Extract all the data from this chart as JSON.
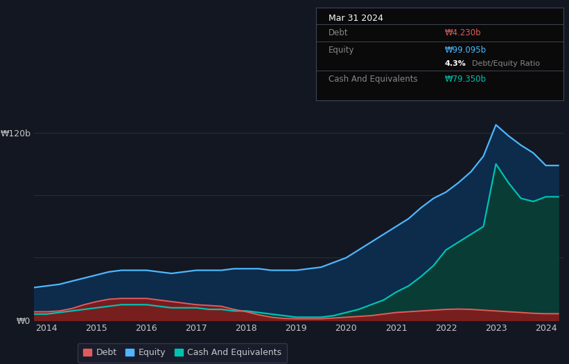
{
  "background_color": "#131722",
  "plot_bg_color": "#131722",
  "grid_color": "#2a2e39",
  "title_box": {
    "date": "Mar 31 2024",
    "debt_label": "Debt",
    "debt_value": "₩4.230b",
    "debt_color": "#e05c5c",
    "equity_label": "Equity",
    "equity_value": "₩99.095b",
    "equity_color": "#4db8ff",
    "ratio_value": "4.3%",
    "ratio_label": " Debt/Equity Ratio",
    "ratio_color": "#cccccc",
    "cash_label": "Cash And Equivalents",
    "cash_value": "₩79.350b",
    "cash_color": "#00c2b2"
  },
  "ylim": [
    0,
    135
  ],
  "xlabel_years": [
    "2014",
    "2015",
    "2016",
    "2017",
    "2018",
    "2019",
    "2020",
    "2021",
    "2022",
    "2023",
    "2024"
  ],
  "legend": [
    {
      "label": "Debt",
      "color": "#e05c5c"
    },
    {
      "label": "Equity",
      "color": "#4db8ff"
    },
    {
      "label": "Cash And Equivalents",
      "color": "#00c2b2"
    }
  ],
  "years": [
    2013.75,
    2014.0,
    2014.25,
    2014.5,
    2014.75,
    2015.0,
    2015.25,
    2015.5,
    2015.75,
    2016.0,
    2016.25,
    2016.5,
    2016.75,
    2017.0,
    2017.25,
    2017.5,
    2017.75,
    2018.0,
    2018.25,
    2018.5,
    2018.75,
    2019.0,
    2019.25,
    2019.5,
    2019.75,
    2020.0,
    2020.25,
    2020.5,
    2020.75,
    2021.0,
    2021.25,
    2021.5,
    2021.75,
    2022.0,
    2022.25,
    2022.5,
    2022.75,
    2023.0,
    2023.25,
    2023.5,
    2023.75,
    2024.0,
    2024.25
  ],
  "debt": [
    5.5,
    5.5,
    6.0,
    7.5,
    10.0,
    12.0,
    13.5,
    14.0,
    14.0,
    14.0,
    13.0,
    12.0,
    11.0,
    10.0,
    9.5,
    9.0,
    7.0,
    5.5,
    3.5,
    2.0,
    1.2,
    1.0,
    1.0,
    1.0,
    1.5,
    2.0,
    2.5,
    3.0,
    4.0,
    5.0,
    5.5,
    6.0,
    6.5,
    7.0,
    7.2,
    7.0,
    6.5,
    6.0,
    5.5,
    5.0,
    4.5,
    4.23,
    4.23
  ],
  "equity": [
    21,
    22,
    23,
    25,
    27,
    29,
    31,
    32,
    32,
    32,
    31,
    30,
    31,
    32,
    32,
    32,
    33,
    33,
    33,
    32,
    32,
    32,
    33,
    34,
    37,
    40,
    45,
    50,
    55,
    60,
    65,
    72,
    78,
    82,
    88,
    95,
    105,
    125,
    118,
    112,
    107,
    99,
    99
  ],
  "cash": [
    4,
    4,
    5,
    6,
    7,
    8,
    9,
    10,
    10,
    10,
    9,
    8,
    8,
    8,
    7,
    7,
    6,
    6,
    5,
    4,
    3,
    2,
    2,
    2,
    3,
    5,
    7,
    10,
    13,
    18,
    22,
    28,
    35,
    45,
    50,
    55,
    60,
    100,
    88,
    78,
    76,
    79,
    79
  ],
  "debt_fill_color": "#8b1a1a",
  "debt_fill_alpha": 0.85,
  "debt_line_color": "#e05c5c",
  "equity_fill_color": "#0d2d4e",
  "equity_fill_alpha": 0.95,
  "equity_line_color": "#4db8ff",
  "cash_fill_color": "#0a3d35",
  "cash_fill_alpha": 0.95,
  "cash_line_color": "#00c2b2",
  "text_color": "#c8c8c8",
  "axis_color": "#c8c8c8"
}
